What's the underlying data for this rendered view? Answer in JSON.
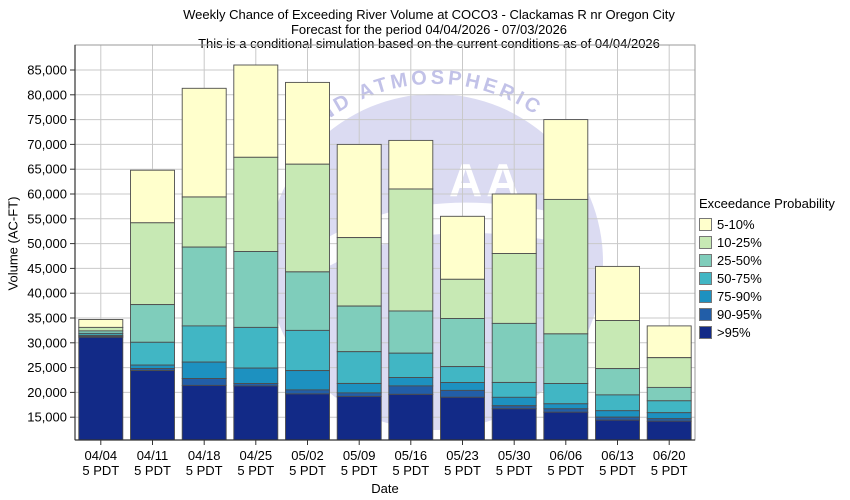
{
  "title": {
    "line1": "Weekly Chance of Exceeding River Volume at COCO3 - Clackamas R nr Oregon City",
    "line2": "Forecast for the period 04/04/2026 - 07/03/2026",
    "line3": "This is a conditional simulation based on the current conditions as of 04/04/2026"
  },
  "watermark": {
    "arc_text": "AND ATMOSPHERIC",
    "letters": "AA",
    "dome_color": "#dbdbf2",
    "text_color": "#c2c2e8"
  },
  "legend": {
    "title": "Exceedance Probability"
  },
  "chart_data": {
    "type": "bar",
    "subtype": "stacked-exceedance",
    "title": "Weekly Chance of Exceeding River Volume at COCO3 - Clackamas R nr Oregon City",
    "xlabel": "Date",
    "ylabel": "Volume (AC-FT)",
    "legend_title": "Exceedance Probability",
    "legend_position": "right",
    "grid": true,
    "categories": [
      "04/04",
      "04/11",
      "04/18",
      "04/25",
      "05/02",
      "05/09",
      "05/16",
      "05/23",
      "05/30",
      "06/06",
      "06/13",
      "06/20"
    ],
    "category_sub_label": "5 PDT",
    "y_ticks": [
      15000,
      20000,
      25000,
      30000,
      35000,
      40000,
      45000,
      50000,
      55000,
      60000,
      65000,
      70000,
      75000,
      80000,
      85000
    ],
    "ylim": [
      10400,
      90040
    ],
    "baseline": 10400,
    "bands": [
      {
        "label": "5-10%",
        "color": "#FFFFCC"
      },
      {
        "label": "10-25%",
        "color": "#C7E9B4"
      },
      {
        "label": "25-50%",
        "color": "#7FCDBB"
      },
      {
        "label": "50-75%",
        "color": "#41B6C4"
      },
      {
        "label": "75-90%",
        "color": "#1D91C0"
      },
      {
        "label": "90-95%",
        "color": "#225EA8"
      },
      {
        "label": ">95%",
        "color": "#122A87"
      }
    ],
    "band_tops": [
      [
        34700,
        33100,
        32400,
        31900,
        31500,
        31300,
        31100
      ],
      [
        64800,
        54200,
        37700,
        30100,
        25500,
        24800,
        24400
      ],
      [
        81300,
        59400,
        49300,
        33400,
        26100,
        22800,
        21400
      ],
      [
        86000,
        67400,
        48400,
        33100,
        24900,
        21800,
        21300
      ],
      [
        82500,
        66000,
        44300,
        32500,
        24400,
        20500,
        19700
      ],
      [
        70000,
        51200,
        37400,
        28200,
        21800,
        19900,
        19200
      ],
      [
        70800,
        61000,
        36400,
        27900,
        23000,
        21300,
        19600
      ],
      [
        55500,
        42800,
        34900,
        25200,
        22000,
        20400,
        19000
      ],
      [
        60000,
        48000,
        33900,
        22000,
        19000,
        17300,
        16700
      ],
      [
        75000,
        58900,
        31800,
        21800,
        17700,
        16700,
        16000
      ],
      [
        45400,
        34500,
        24800,
        19500,
        16300,
        15000,
        14400
      ],
      [
        33400,
        27000,
        21000,
        18300,
        15900,
        14700,
        14200
      ]
    ]
  }
}
